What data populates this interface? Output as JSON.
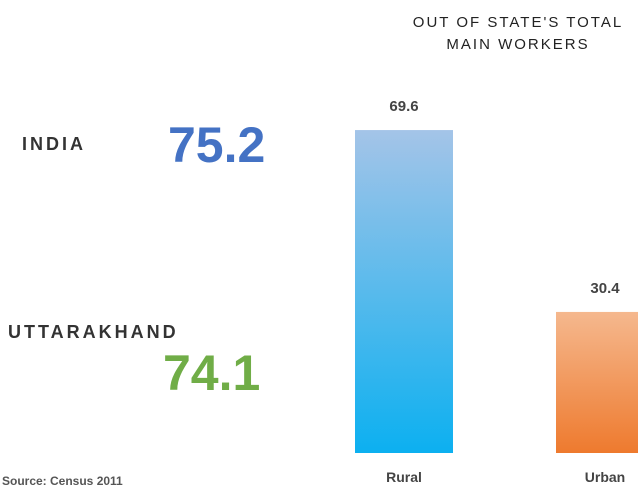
{
  "chart_data": {
    "type": "bar",
    "title": "OUT OF STATE'S TOTAL MAIN WORKERS",
    "categories": [
      "Rural",
      "Urban"
    ],
    "values": [
      69.6,
      30.4
    ],
    "gradients": [
      [
        "#a4c4e8",
        "#0cb0f0"
      ],
      [
        "#f5b88e",
        "#ee7a2e"
      ]
    ],
    "stats": [
      {
        "label": "INDIA",
        "value": 75.2,
        "color": "#4472c4"
      },
      {
        "label": "UTTARAKHAND",
        "value": 74.1,
        "color": "#70ad47"
      }
    ],
    "source": "Source: Census 2011"
  }
}
